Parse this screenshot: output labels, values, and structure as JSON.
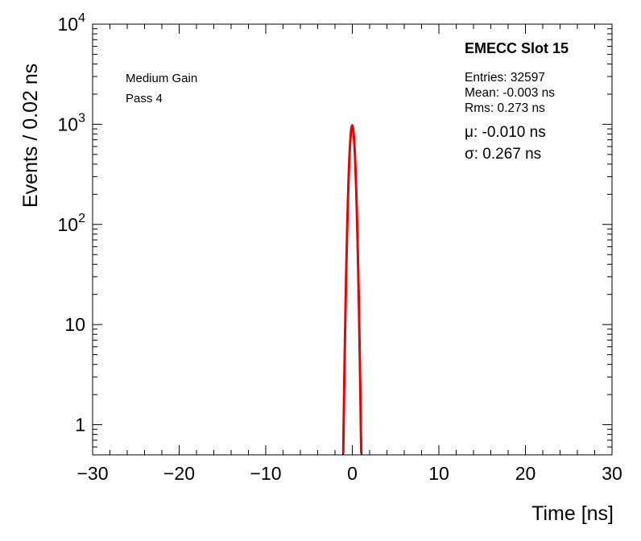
{
  "page": {
    "background": "#ffffff"
  },
  "labels": {
    "gain": "Medium Gain",
    "pass": "Pass 4",
    "detector": "EMECC Slot 15",
    "entries": "Entries: 32597",
    "mean": "Mean: -0.003 ns",
    "rms": "Rms: 0.273 ns",
    "mu": "μ: -0.010 ns",
    "sigma": "σ: 0.267 ns"
  },
  "chart_data": {
    "type": "histogram",
    "scale": {
      "x": "linear",
      "y": "log"
    },
    "xlabel": "Time [ns]",
    "ylabel": "Events / 0.02 ns",
    "x_range": [
      -30,
      30
    ],
    "y_range": [
      0.5,
      10000
    ],
    "x_major_ticks": [
      -30,
      -20,
      -10,
      0,
      10,
      20,
      30
    ],
    "x_minor_tick_step": 2,
    "y_major_ticks": [
      1,
      10,
      100,
      1000,
      10000
    ],
    "bin_width_ns": 0.02,
    "entries": 32597,
    "mean_ns": -0.003,
    "rms_ns": 0.273,
    "histogram": {
      "color": "#000000",
      "model": "gaussian",
      "peak_events": 953,
      "mean_ns": -0.003,
      "sigma_ns": 0.273,
      "visible_extent_ns": [
        -1.1,
        1.1
      ]
    },
    "fit": {
      "color": "#ee0000",
      "model": "gaussian",
      "peak_events": 974,
      "mu_ns": -0.01,
      "sigma_ns": 0.267
    },
    "grid": false,
    "legend": false,
    "frame_color": "#000000"
  }
}
